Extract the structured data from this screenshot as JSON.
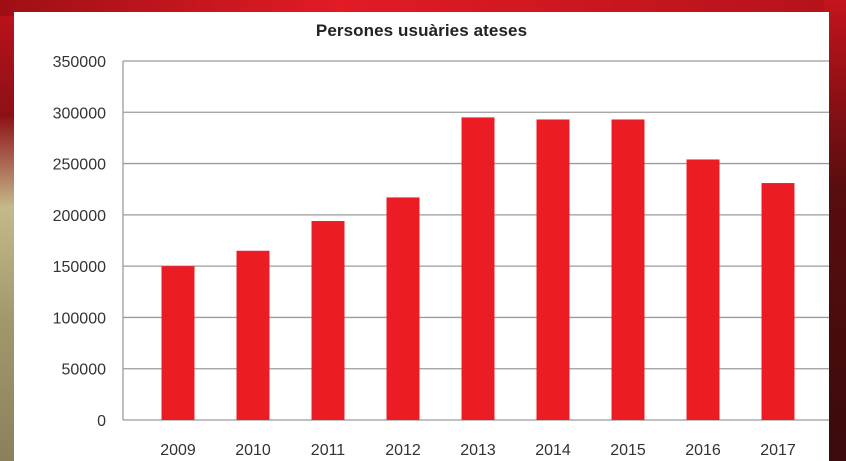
{
  "colors": {
    "bar": "#ec1c24",
    "grid": "#9b9b9b",
    "text": "#333333"
  },
  "chart_data": {
    "type": "bar",
    "title": "Persones usuàries ateses",
    "categories": [
      "2009",
      "2010",
      "2011",
      "2012",
      "2013",
      "2014",
      "2015",
      "2016",
      "2017"
    ],
    "values": [
      150000,
      165000,
      194000,
      217000,
      295000,
      293000,
      293000,
      254000,
      231000
    ],
    "ylim": [
      0,
      350000
    ],
    "yticks": [
      0,
      50000,
      100000,
      150000,
      200000,
      250000,
      300000,
      350000
    ],
    "ytick_labels": [
      "0",
      "50000",
      "100000",
      "150000",
      "200000",
      "250000",
      "300000",
      "350000"
    ],
    "grid": true,
    "legend": "none"
  }
}
